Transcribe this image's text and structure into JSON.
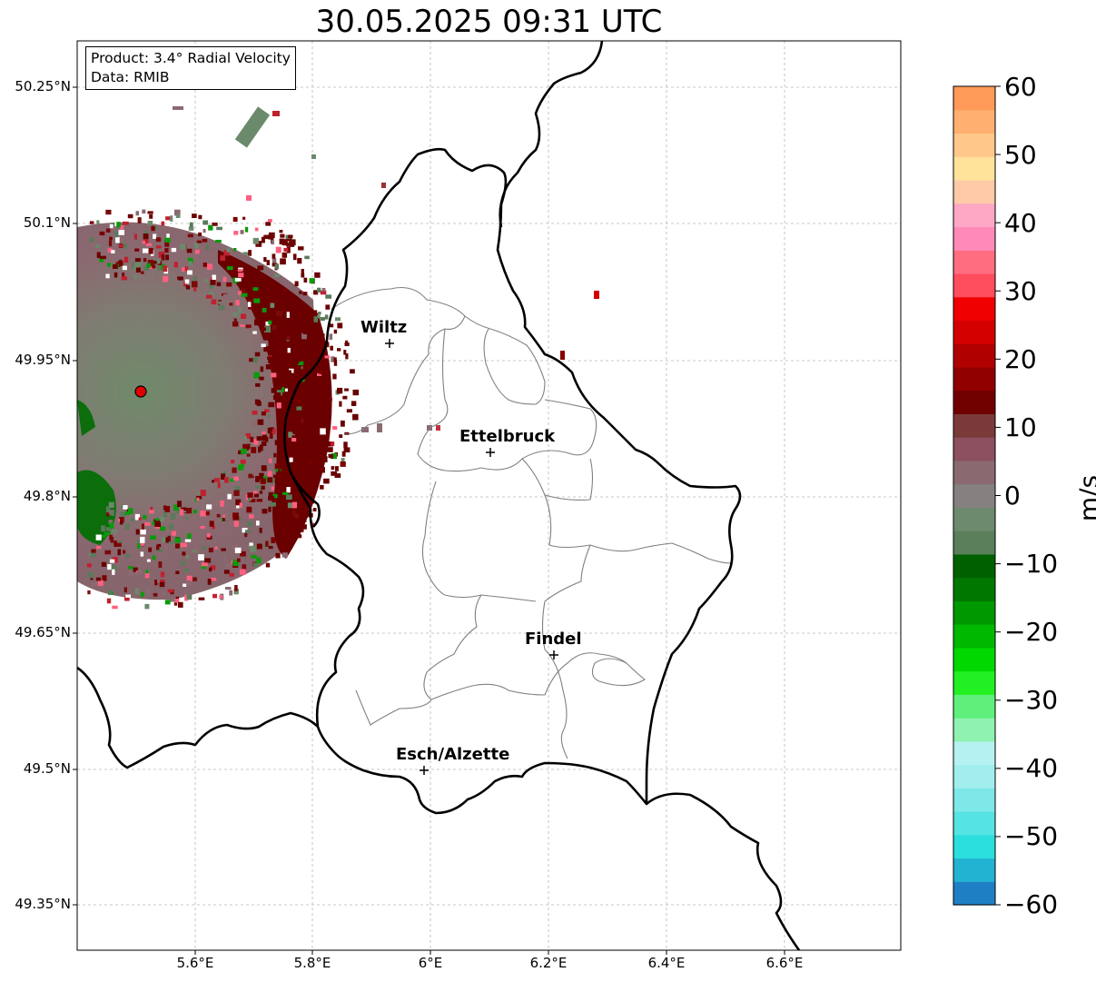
{
  "title": "30.05.2025 09:31 UTC",
  "info": {
    "product": "Product: 3.4° Radial Velocity",
    "data": "Data: RMIB"
  },
  "map": {
    "lat_ticks": [
      "50.25°N",
      "50.1°N",
      "49.95°N",
      "49.8°N",
      "49.65°N",
      "49.5°N",
      "49.35°N"
    ],
    "lon_ticks": [
      "5.6°E",
      "5.8°E",
      "6°E",
      "6.2°E",
      "6.4°E",
      "6.6°E"
    ],
    "cities": [
      {
        "name": "Wiltz"
      },
      {
        "name": "Ettelbruck"
      },
      {
        "name": "Findel"
      },
      {
        "name": "Esch/Alzette"
      }
    ],
    "radar_marker_color": "#e00000"
  },
  "colorbar": {
    "unit": "m/s",
    "ticks": [
      "60",
      "50",
      "40",
      "30",
      "20",
      "10",
      "0",
      "−10",
      "−20",
      "−30",
      "−40",
      "−50",
      "−60"
    ],
    "range": [
      -60,
      60
    ],
    "colors": [
      "#1f7fc4",
      "#22b2d2",
      "#2bdede",
      "#55e3e3",
      "#7ee8e8",
      "#a2eeee",
      "#b6f1f1",
      "#8ff2b0",
      "#5ef07a",
      "#22f022",
      "#00d800",
      "#00b800",
      "#009800",
      "#007800",
      "#006000",
      "#5a7f5a",
      "#6e8a6e",
      "#868080",
      "#8a6a70",
      "#8c5060",
      "#7a3a3a",
      "#700000",
      "#900000",
      "#b00000",
      "#d40000",
      "#f00000",
      "#ff4d5e",
      "#ff6e80",
      "#ff89b8",
      "#ffa8c6",
      "#ffcaa8",
      "#ffe39a",
      "#ffc88a",
      "#ffb070",
      "#ff9a58"
    ]
  }
}
